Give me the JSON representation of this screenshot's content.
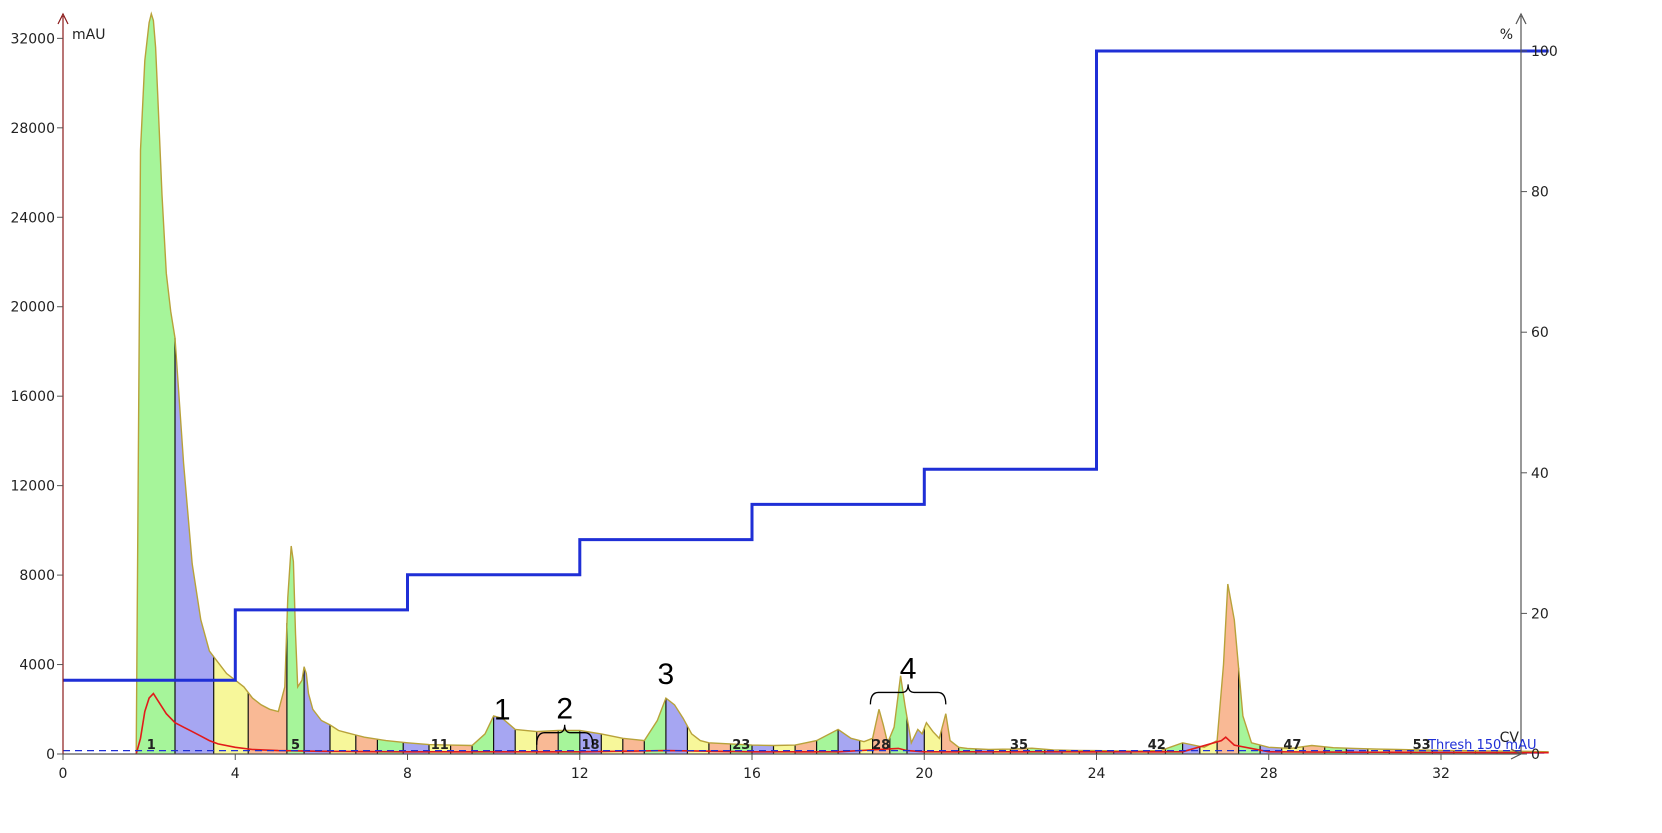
{
  "chart_data": {
    "type": "area",
    "x_axis": {
      "unit_label": "CV",
      "range": [
        0,
        34.5
      ],
      "ticks": [
        0,
        4,
        8,
        12,
        16,
        20,
        24,
        28,
        32
      ]
    },
    "y_left": {
      "unit_label": "mAU",
      "range": [
        0,
        33000
      ],
      "ticks": [
        0,
        4000,
        8000,
        12000,
        16000,
        20000,
        24000,
        28000,
        32000
      ]
    },
    "y_right": {
      "unit_label": "%",
      "range": [
        0,
        104
      ],
      "ticks": [
        0,
        20,
        40,
        60,
        80,
        100
      ]
    },
    "colors": {
      "uv_line": "#b8a23a",
      "secondary_line": "#e21a1a",
      "gradient": "#1f2fd6",
      "threshold": "#1f2fd6",
      "fraction_fills": [
        "#a6f59a",
        "#a6a6f2",
        "#f7f79a",
        "#f9b995"
      ]
    },
    "uv_trace": {
      "x": [
        1.7,
        1.73,
        1.8,
        1.9,
        2.0,
        2.05,
        2.1,
        2.15,
        2.2,
        2.3,
        2.4,
        2.5,
        2.6,
        2.8,
        3.0,
        3.2,
        3.4,
        3.6,
        3.8,
        4.0,
        4.2,
        4.4,
        4.6,
        4.8,
        5.0,
        5.15,
        5.22,
        5.3,
        5.35,
        5.4,
        5.45,
        5.55,
        5.6,
        5.65,
        5.7,
        5.8,
        6.0,
        6.2,
        6.4,
        6.6,
        6.8,
        7.0,
        7.5,
        8.0,
        8.5,
        9.0,
        9.5,
        9.8,
        10.0,
        10.2,
        10.5,
        11.0,
        11.5,
        12.0,
        12.5,
        13.0,
        13.5,
        13.8,
        14.0,
        14.2,
        14.4,
        14.6,
        14.8,
        15.0,
        15.5,
        16.0,
        16.5,
        17.0,
        17.5,
        18.0,
        18.3,
        18.6,
        18.8,
        18.95,
        19.05,
        19.15,
        19.3,
        19.45,
        19.55,
        19.7,
        19.85,
        19.95,
        20.05,
        20.2,
        20.35,
        20.5,
        20.6,
        20.8,
        21.0,
        21.5,
        22.0,
        22.5,
        23.0,
        23.5,
        24.0,
        24.5,
        25.0,
        25.5,
        26.0,
        26.5,
        26.8,
        26.95,
        27.05,
        27.2,
        27.4,
        27.6,
        28.0,
        28.5,
        29.0,
        29.5,
        30.0,
        30.5,
        31.0,
        31.5,
        32.0,
        32.5,
        33.0,
        33.5,
        34.0,
        34.5
      ],
      "y": [
        0,
        8000,
        27000,
        31000,
        32700,
        33100,
        32800,
        31600,
        29500,
        25000,
        21500,
        19800,
        18600,
        13000,
        8500,
        6000,
        4600,
        4100,
        3600,
        3300,
        3000,
        2500,
        2200,
        2000,
        1900,
        3000,
        7000,
        9300,
        8600,
        5400,
        3000,
        3300,
        3900,
        3600,
        2700,
        2000,
        1500,
        1300,
        1050,
        950,
        850,
        750,
        600,
        500,
        420,
        400,
        380,
        900,
        1700,
        1600,
        1100,
        1000,
        1050,
        1050,
        900,
        700,
        600,
        1500,
        2500,
        2200,
        1600,
        900,
        600,
        500,
        450,
        400,
        380,
        400,
        600,
        1100,
        700,
        550,
        700,
        2000,
        1300,
        500,
        1200,
        3500,
        2200,
        500,
        1100,
        900,
        1400,
        1000,
        700,
        1800,
        600,
        300,
        250,
        200,
        220,
        260,
        180,
        160,
        150,
        140,
        130,
        160,
        500,
        300,
        600,
        4000,
        7600,
        6000,
        1700,
        500,
        300,
        250,
        380,
        280,
        250,
        220,
        200,
        180,
        160,
        150,
        140,
        130,
        120,
        100
      ]
    },
    "secondary_trace": {
      "x": [
        1.7,
        1.8,
        1.9,
        2.0,
        2.1,
        2.2,
        2.4,
        2.6,
        2.8,
        3.0,
        3.2,
        3.4,
        3.6,
        4.0,
        4.4,
        5.0,
        6.0,
        8.0,
        10.0,
        12.0,
        14.0,
        16.0,
        18.0,
        19.4,
        19.6,
        20.0,
        22.0,
        24.0,
        26.0,
        26.9,
        27.0,
        27.2,
        28.0,
        30.0,
        34.5
      ],
      "y": [
        0,
        700,
        1900,
        2500,
        2700,
        2400,
        1800,
        1400,
        1200,
        1000,
        800,
        600,
        450,
        300,
        200,
        150,
        120,
        100,
        100,
        100,
        150,
        100,
        100,
        250,
        150,
        100,
        100,
        100,
        100,
        600,
        750,
        400,
        100,
        80,
        60
      ]
    },
    "gradient_trace": {
      "x": [
        0,
        4,
        4,
        8,
        8,
        12,
        12,
        16,
        16,
        20,
        20,
        24,
        24,
        34.5
      ],
      "y": [
        10.5,
        10.5,
        20.5,
        20.5,
        25.5,
        25.5,
        30.5,
        30.5,
        35.5,
        35.5,
        40.5,
        40.5,
        100,
        100
      ]
    },
    "threshold": {
      "value_mau": 150,
      "label": "Thresh   150 mAU"
    },
    "fractions": {
      "boundaries": [
        1.7,
        2.6,
        3.5,
        4.3,
        5.2,
        5.6,
        6.2,
        6.8,
        7.3,
        7.9,
        8.5,
        9.0,
        9.5,
        10.0,
        10.5,
        11.0,
        11.5,
        12.0,
        12.5,
        13.0,
        13.5,
        14.0,
        14.5,
        15.0,
        15.5,
        16.0,
        16.5,
        17.0,
        17.5,
        18.0,
        18.5,
        18.8,
        19.2,
        19.6,
        20.0,
        20.4,
        20.8,
        21.2,
        21.6,
        22.0,
        22.4,
        22.8,
        23.2,
        23.6,
        24.0,
        24.4,
        24.8,
        25.2,
        25.6,
        26.0,
        26.4,
        26.8,
        27.3,
        27.8,
        28.3,
        28.8,
        29.3,
        29.8,
        30.3,
        30.8,
        31.3,
        31.8,
        32.3,
        32.8,
        33.3,
        33.8
      ],
      "labels": [
        {
          "text": "1",
          "x": 2.05
        },
        {
          "text": "5",
          "x": 5.4
        },
        {
          "text": "11",
          "x": 8.75
        },
        {
          "text": "18",
          "x": 12.25
        },
        {
          "text": "23",
          "x": 15.75
        },
        {
          "text": "28",
          "x": 19.0
        },
        {
          "text": "35",
          "x": 22.2
        },
        {
          "text": "42",
          "x": 25.4
        },
        {
          "text": "47",
          "x": 28.55
        },
        {
          "text": "53",
          "x": 31.55
        }
      ]
    },
    "annotations": [
      {
        "text": "1",
        "x": 10.2,
        "y": 1000
      },
      {
        "text": "2",
        "x": 11.6,
        "y": 1400,
        "bracket": [
          11.0,
          12.3
        ]
      },
      {
        "text": "3",
        "x": 14.0,
        "y": 2600
      },
      {
        "text": "4",
        "x": 19.5,
        "y": 3200,
        "bracket": [
          18.75,
          20.5
        ]
      }
    ]
  }
}
